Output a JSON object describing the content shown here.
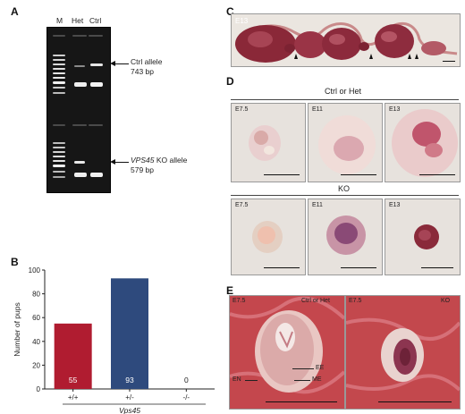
{
  "panels": {
    "a": {
      "letter": "A",
      "lanes": [
        "M",
        "Het",
        "Ctrl"
      ],
      "ctrl_allele": {
        "line1": "Ctrl allele",
        "line2": "743 bp"
      },
      "ko_allele": {
        "italic": "VPS45",
        "line1_rest": " KO allele",
        "line2": "579 bp"
      }
    },
    "b": {
      "letter": "B",
      "ylabel": "Number of pups",
      "xlabel": "Vps45"
    },
    "c": {
      "letter": "C",
      "stage": "E13"
    },
    "d": {
      "letter": "D",
      "ctrl_header": "Ctrl or Het",
      "ko_header": "KO",
      "ctrl_stages": [
        "E7.5",
        "E11",
        "E13"
      ],
      "ko_stages": [
        "E7.5",
        "E11",
        "E13"
      ]
    },
    "e": {
      "letter": "E",
      "left": {
        "stage": "E7.5",
        "group": "Ctrl or Het",
        "labels": {
          "ee": "EE",
          "me": "ME",
          "en": "EN"
        }
      },
      "right": {
        "stage": "E7.5",
        "group": "KO"
      }
    }
  },
  "chart_data": {
    "type": "bar",
    "categories": [
      "+/+",
      "+/-",
      "-/-"
    ],
    "values": [
      55,
      93,
      0
    ],
    "data_labels": [
      "55",
      "93",
      "0"
    ],
    "colors": [
      "#b01c30",
      "#2e4a7d",
      "#b01c30"
    ],
    "ylabel": "Number of pups",
    "xlabel": "Vps45",
    "ylim": [
      0,
      100
    ],
    "yticks": [
      0,
      20,
      40,
      60,
      80,
      100
    ]
  }
}
